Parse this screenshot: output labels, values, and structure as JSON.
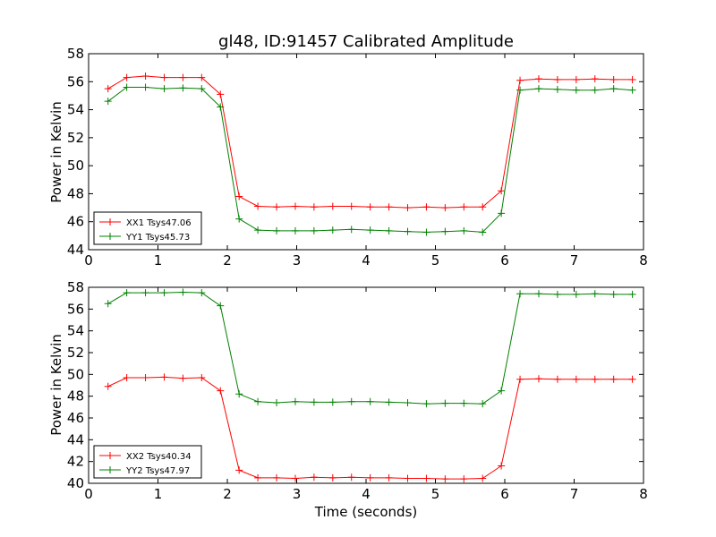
{
  "chart_data": [
    {
      "type": "line",
      "title": "gl48, ID:91457 Calibrated Amplitude",
      "xlabel": "",
      "ylabel": "Power in Kelvin",
      "xlim": [
        0,
        8
      ],
      "ylim": [
        44,
        58
      ],
      "xticks": [
        "0",
        "1",
        "2",
        "3",
        "4",
        "5",
        "6",
        "7",
        "8"
      ],
      "yticks": [
        "44",
        "46",
        "48",
        "50",
        "52",
        "54",
        "56",
        "58"
      ],
      "grid": false,
      "legend": "lower-left",
      "x": [
        0.28,
        0.55,
        0.82,
        1.09,
        1.36,
        1.63,
        1.9,
        2.17,
        2.44,
        2.71,
        2.98,
        3.25,
        3.52,
        3.79,
        4.06,
        4.33,
        4.6,
        4.87,
        5.14,
        5.41,
        5.68,
        5.95,
        6.22,
        6.49,
        6.76,
        7.03,
        7.3,
        7.57,
        7.84
      ],
      "series": [
        {
          "name": "XX1 Tsys47.06",
          "color": "#ff0000",
          "values": [
            55.5,
            56.3,
            56.4,
            56.3,
            56.3,
            56.3,
            55.1,
            47.8,
            47.1,
            47.05,
            47.1,
            47.05,
            47.1,
            47.1,
            47.05,
            47.05,
            47.0,
            47.05,
            47.0,
            47.05,
            47.05,
            48.2,
            56.1,
            56.2,
            56.15,
            56.15,
            56.2,
            56.15,
            56.15
          ]
        },
        {
          "name": "YY1 Tsys45.73",
          "color": "#008000",
          "values": [
            54.6,
            55.6,
            55.6,
            55.5,
            55.55,
            55.5,
            54.2,
            46.2,
            45.4,
            45.35,
            45.35,
            45.35,
            45.4,
            45.45,
            45.4,
            45.35,
            45.3,
            45.25,
            45.3,
            45.35,
            45.25,
            46.6,
            55.4,
            55.5,
            55.45,
            55.4,
            55.4,
            55.5,
            55.4
          ]
        }
      ]
    },
    {
      "type": "line",
      "title": "",
      "xlabel": "Time (seconds)",
      "ylabel": "Power in Kelvin",
      "xlim": [
        0,
        8
      ],
      "ylim": [
        40,
        58
      ],
      "xticks": [
        "0",
        "1",
        "2",
        "3",
        "4",
        "5",
        "6",
        "7",
        "8"
      ],
      "yticks": [
        "40",
        "42",
        "44",
        "46",
        "48",
        "50",
        "52",
        "54",
        "56",
        "58"
      ],
      "grid": false,
      "legend": "lower-left",
      "x": [
        0.28,
        0.55,
        0.82,
        1.09,
        1.36,
        1.63,
        1.9,
        2.17,
        2.44,
        2.71,
        2.98,
        3.25,
        3.52,
        3.79,
        4.06,
        4.33,
        4.6,
        4.87,
        5.14,
        5.41,
        5.68,
        5.95,
        6.22,
        6.49,
        6.76,
        7.03,
        7.3,
        7.57,
        7.84
      ],
      "series": [
        {
          "name": "XX2 Tsys40.34",
          "color": "#ff0000",
          "values": [
            48.9,
            49.7,
            49.7,
            49.75,
            49.65,
            49.7,
            48.5,
            41.2,
            40.5,
            40.5,
            40.45,
            40.55,
            40.5,
            40.55,
            40.5,
            40.5,
            40.45,
            40.45,
            40.4,
            40.4,
            40.45,
            41.6,
            49.55,
            49.6,
            49.55,
            49.55,
            49.55,
            49.55,
            49.55
          ]
        },
        {
          "name": "YY2 Tsys47.97",
          "color": "#008000",
          "values": [
            56.5,
            57.5,
            57.5,
            57.5,
            57.55,
            57.5,
            56.3,
            48.2,
            47.5,
            47.4,
            47.5,
            47.45,
            47.45,
            47.5,
            47.5,
            47.45,
            47.4,
            47.3,
            47.35,
            47.35,
            47.3,
            48.5,
            57.4,
            57.4,
            57.35,
            57.35,
            57.4,
            57.35,
            57.35
          ]
        }
      ]
    }
  ]
}
